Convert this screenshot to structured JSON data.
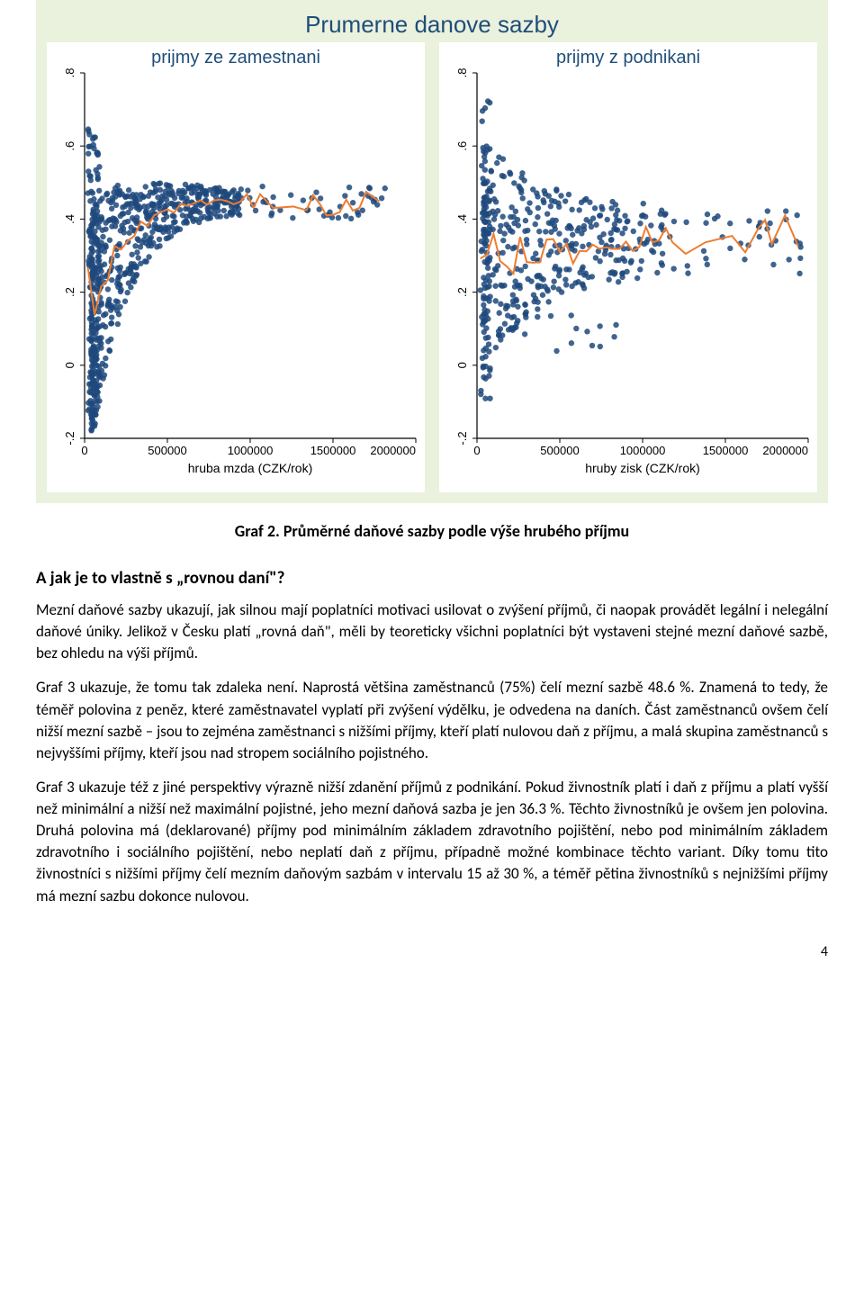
{
  "charts": {
    "overall_title": "Prumerne danove sazby",
    "background_color": "#eaf1dd",
    "panel_bg": "#ffffff",
    "scatter_color": "#1f497d",
    "line_color": "#ed7d31",
    "axis_color": "#000000",
    "title_color": "#1f4e79",
    "ytick_labels": [
      "-.2",
      "0",
      ".2",
      ".4",
      ".6",
      ".8"
    ],
    "ytick_values": [
      -0.2,
      0,
      0.2,
      0.4,
      0.6,
      0.8
    ],
    "ylim": [
      -0.2,
      0.8
    ],
    "xlim": [
      0,
      2000000
    ],
    "xtick_labels": [
      "0",
      "500000",
      "1000000",
      "1500000",
      "2000000"
    ],
    "xtick_values": [
      0,
      500000,
      1000000,
      1500000,
      2000000
    ],
    "marker_radius": 3.2,
    "marker_opacity": 0.85,
    "line_width": 2,
    "axis_fontsize": 13,
    "title_fontsize": 20,
    "overall_title_fontsize": 26,
    "left": {
      "subtitle": "prijmy ze zamestnani",
      "xlabel": "hruba mzda (CZK/rok)"
    },
    "right": {
      "subtitle": "prijmy z podnikani",
      "xlabel": "hruby zisk (CZK/rok)"
    }
  },
  "caption": "Graf 2. Průměrné daňové sazby podle výše hrubého příjmu",
  "section_heading": "A jak je to vlastně s „rovnou daní\"?",
  "para1": "Mezní daňové sazby ukazují, jak silnou mají poplatníci motivaci usilovat o zvýšení příjmů, či naopak provádět legální i nelegální daňové úniky. Jelikož v Česku platí „rovná daň\", měli by teoreticky všichni poplatníci být vystaveni stejné mezní daňové sazbě, bez ohledu na výši příjmů.",
  "para2": "Graf 3 ukazuje, že tomu tak zdaleka není. Naprostá většina zaměstnanců (75%) čelí mezní sazbě 48.6 %. Znamená to tedy, že téměř polovina z peněz, které zaměstnavatel vyplatí při zvýšení výdělku, je odvedena na daních. Část zaměstnanců ovšem čelí nižší mezní sazbě – jsou to zejména zaměstnanci s nižšími příjmy, kteří platí nulovou daň z příjmu, a malá skupina zaměstnanců s nejvyššími příjmy, kteří jsou nad stropem sociálního pojistného.",
  "para3": "Graf 3 ukazuje též z jiné perspektivy výrazně nižší zdanění příjmů z podnikání. Pokud živnostník platí i daň z příjmu a platí vyšší než minimální a nižší než maximální pojistné, jeho mezní daňová sazba je jen 36.3 %. Těchto živnostníků je ovšem jen polovina. Druhá polovina má (deklarované) příjmy pod minimálním základem zdravotního pojištění, nebo pod minimálním základem zdravotního i sociálního pojištění, nebo neplatí daň z příjmu, případně možné kombinace těchto variant. Díky tomu tito živnostníci s nižšími příjmy čelí mezním daňovým sazbám v intervalu 15 až 30 %, a téměř pětina živnostníků s nejnižšími příjmy má mezní sazbu dokonce nulovou.",
  "page_number": "4"
}
